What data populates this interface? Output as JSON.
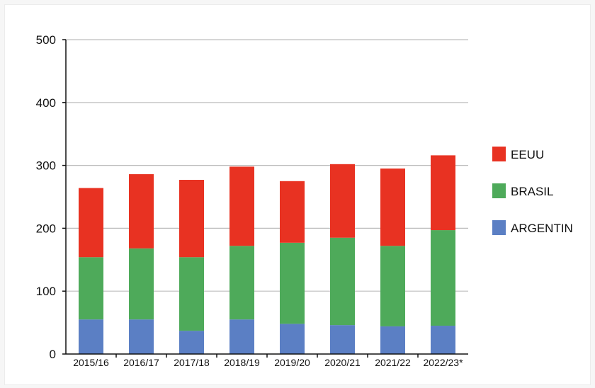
{
  "chart_data": {
    "type": "bar",
    "stacked": true,
    "categories": [
      "2015/16",
      "2016/17",
      "2017/18",
      "2018/19",
      "2019/20",
      "2020/21",
      "2021/22",
      "2022/23*"
    ],
    "series": [
      {
        "name": "ARGENTINA",
        "color": "#5b7fc4",
        "values": [
          55,
          55,
          37,
          55,
          48,
          46,
          44,
          45
        ]
      },
      {
        "name": "BRASIL",
        "color": "#4eaa5a",
        "values": [
          99,
          113,
          117,
          117,
          129,
          139,
          128,
          152
        ]
      },
      {
        "name": "EEUU",
        "color": "#e83222",
        "values": [
          110,
          118,
          123,
          126,
          98,
          117,
          123,
          119
        ]
      }
    ],
    "legend_labels": [
      "EEUU",
      "BRASIL",
      "ARGENTIN"
    ],
    "yticks": [
      "0",
      "100",
      "200",
      "300",
      "400",
      "500"
    ],
    "ylim": [
      0,
      500
    ],
    "grid": true,
    "legend_position": "right"
  }
}
